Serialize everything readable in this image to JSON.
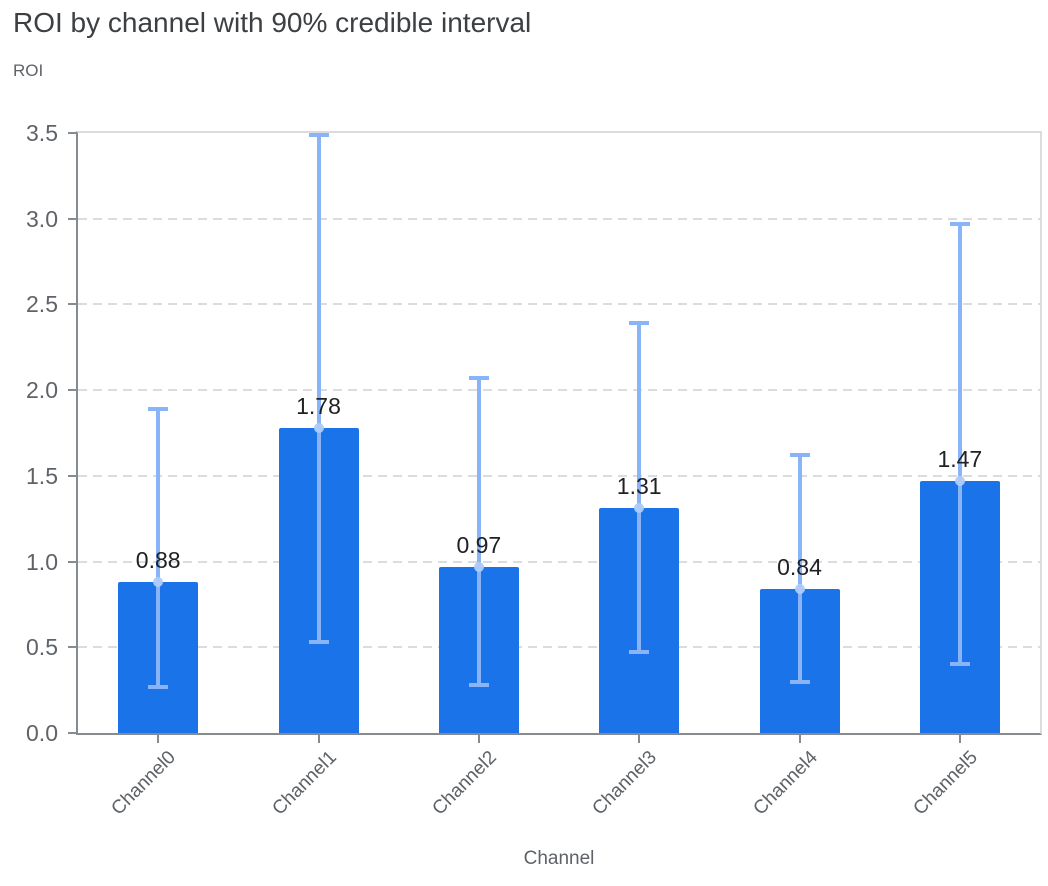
{
  "header": {
    "title": "ROI by channel with 90% credible interval"
  },
  "chart_data": {
    "type": "bar",
    "title": "ROI by channel with 90% credible interval",
    "xlabel": "Channel",
    "ylabel": "ROI",
    "categories": [
      "Channel0",
      "Channel1",
      "Channel2",
      "Channel3",
      "Channel4",
      "Channel5"
    ],
    "values": [
      0.88,
      1.78,
      0.97,
      1.31,
      0.84,
      1.47
    ],
    "data_labels": [
      "0.88",
      "1.78",
      "0.97",
      "1.31",
      "0.84",
      "1.47"
    ],
    "ci_lower": [
      0.27,
      0.53,
      0.28,
      0.47,
      0.3,
      0.4
    ],
    "ci_upper": [
      1.89,
      3.49,
      2.07,
      2.39,
      1.62,
      2.97
    ],
    "interval_level": "90% credible interval",
    "ylim": [
      0,
      3.5
    ],
    "yticks": [
      0.0,
      0.5,
      1.0,
      1.5,
      2.0,
      2.5,
      3.0,
      3.5
    ],
    "ytick_labels": [
      "0.0",
      "0.5",
      "1.0",
      "1.5",
      "2.0",
      "2.5",
      "3.0",
      "3.5"
    ],
    "grid": "horizontal-dashed",
    "legend": "none",
    "colors": {
      "bar": "#1a73e8",
      "error_bar": "#8ab4f8",
      "mean_marker": "#aecbfa",
      "grid_line": "#dadce0",
      "axis_line": "#868b90",
      "title_text": "#3c4043",
      "tick_text": "#5f6368",
      "data_label_text": "#202124",
      "background": "#ffffff"
    }
  }
}
